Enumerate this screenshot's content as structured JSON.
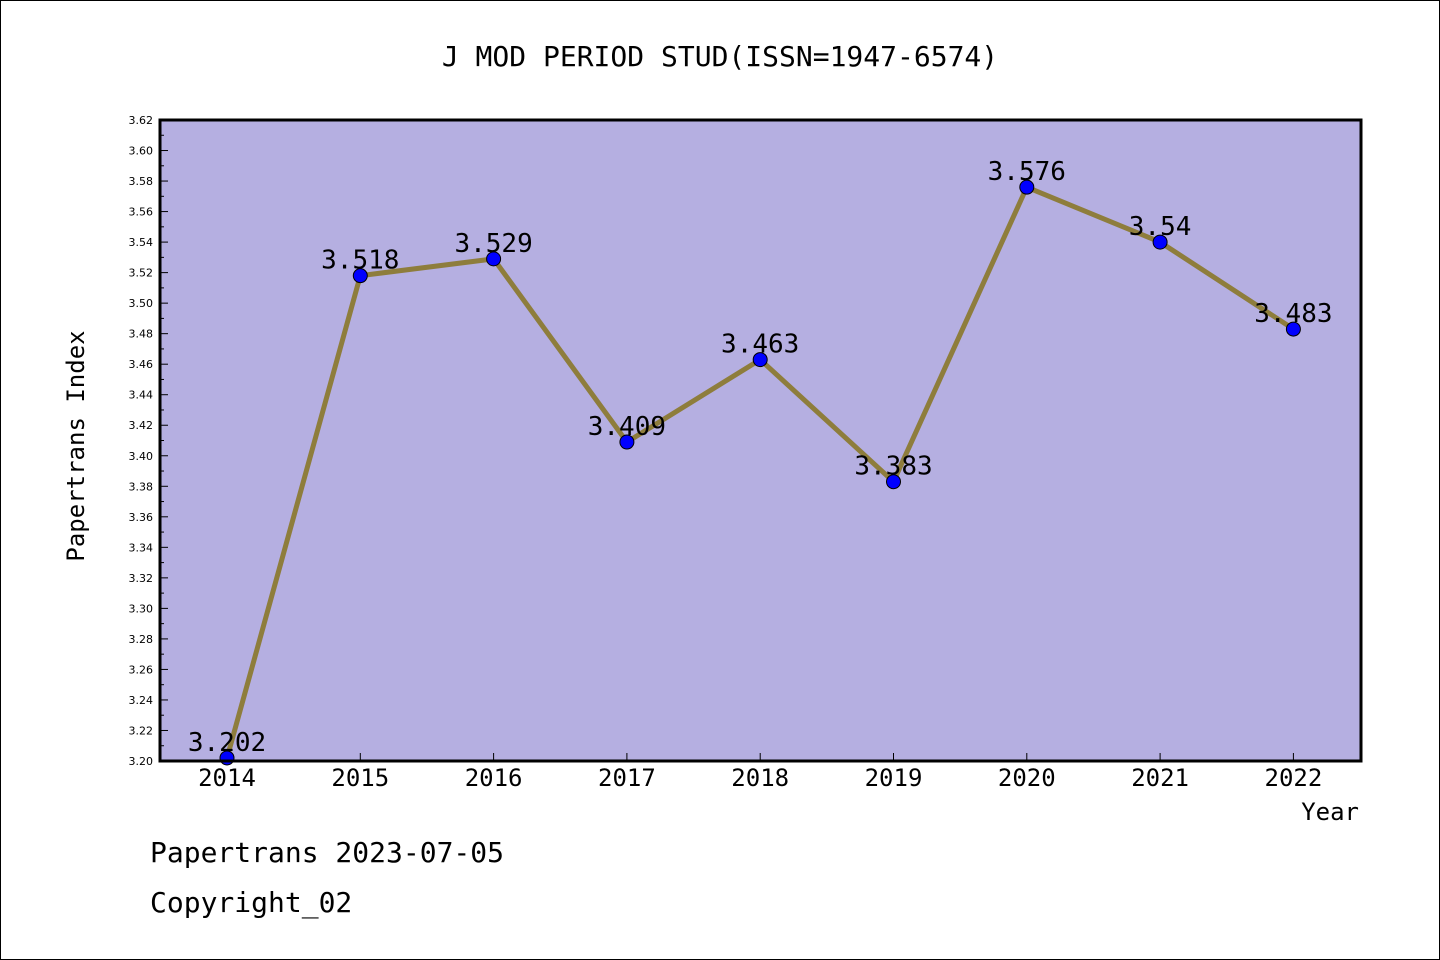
{
  "chart_data": {
    "type": "line",
    "title": "J MOD PERIOD STUD(ISSN=1947-6574)",
    "xlabel": "Year",
    "ylabel": "Papertrans Index",
    "categories": [
      "2014",
      "2015",
      "2016",
      "2017",
      "2018",
      "2019",
      "2020",
      "2021",
      "2022"
    ],
    "values": [
      3.202,
      3.518,
      3.529,
      3.409,
      3.463,
      3.383,
      3.576,
      3.54,
      3.483
    ],
    "data_labels": [
      "3.202",
      "3.518",
      "3.529",
      "3.409",
      "3.463",
      "3.383",
      "3.576",
      "3.54",
      "3.483"
    ],
    "ylim": [
      3.2,
      3.62
    ],
    "yticks": [
      "3.20",
      "3.22",
      "3.24",
      "3.26",
      "3.28",
      "3.30",
      "3.32",
      "3.34",
      "3.36",
      "3.38",
      "3.40",
      "3.42",
      "3.44",
      "3.46",
      "3.48",
      "3.50",
      "3.52",
      "3.54",
      "3.56",
      "3.58",
      "3.60",
      "3.62"
    ],
    "grid": false,
    "colors": {
      "plot_background": "#b5afe1",
      "line": "#8e7d3c",
      "marker": "#0000ff"
    }
  },
  "footer": {
    "line1": "Papertrans 2023-07-05",
    "line2": "Copyright_02"
  }
}
